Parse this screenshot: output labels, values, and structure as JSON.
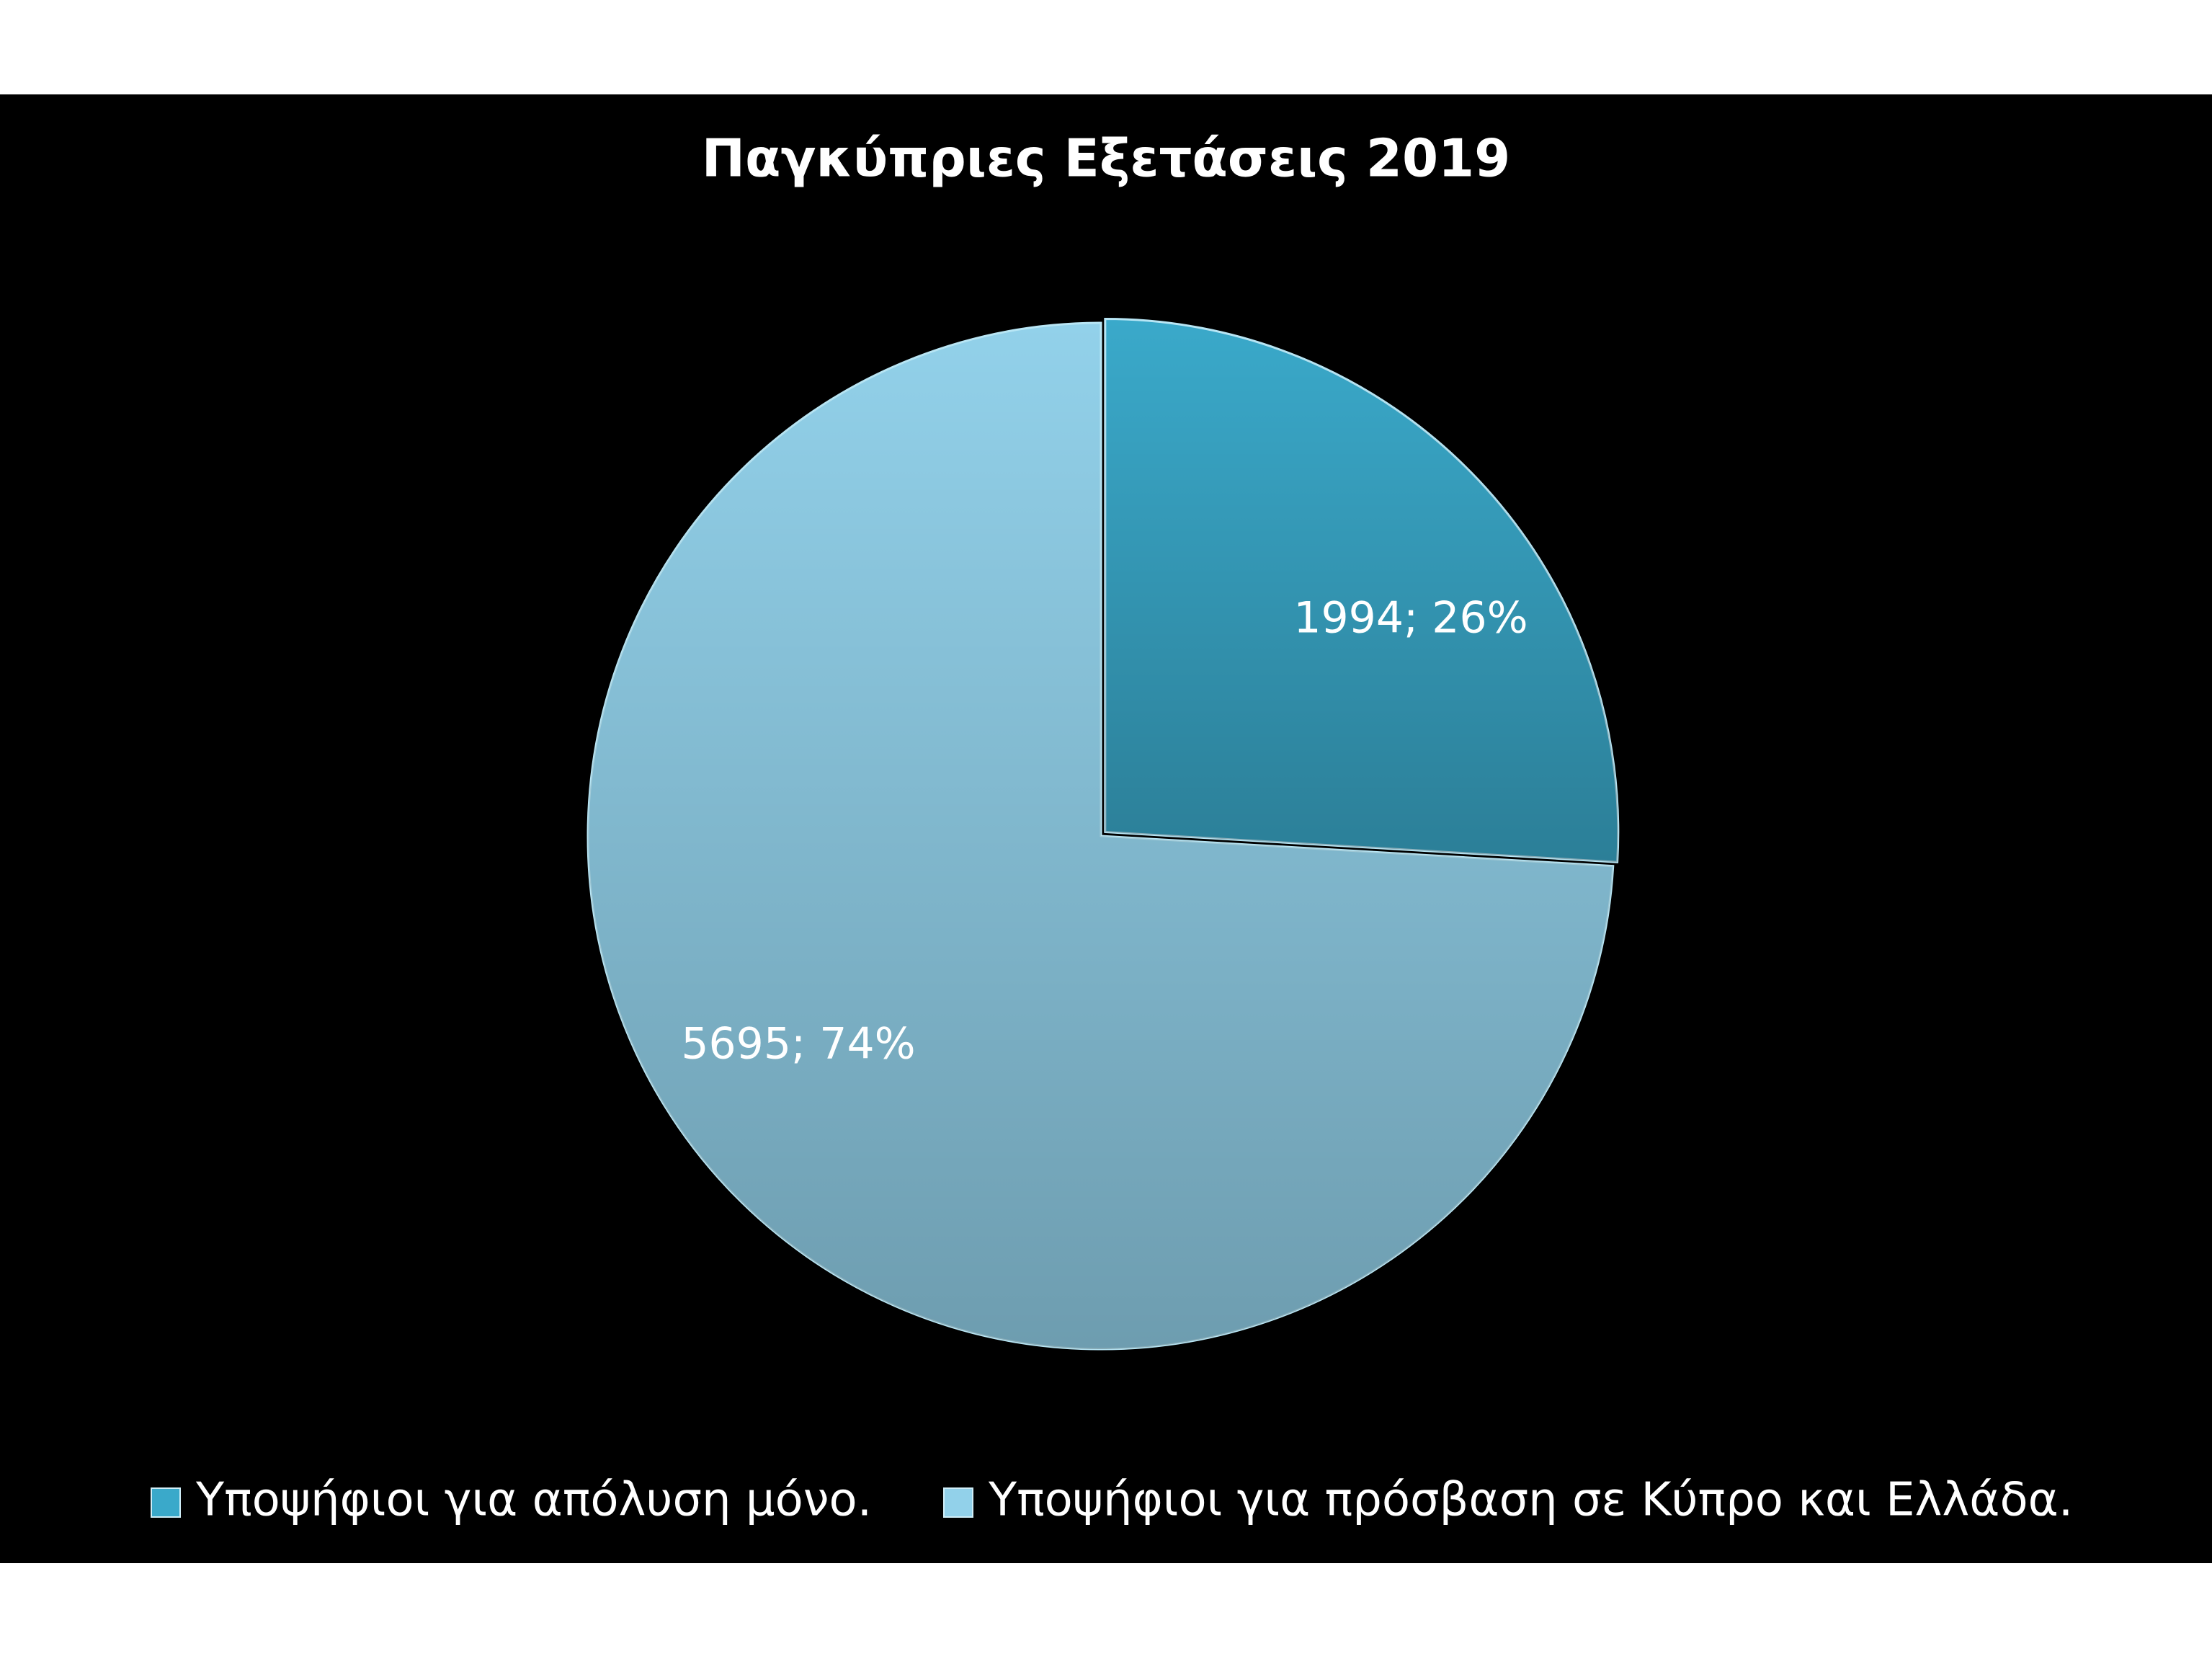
{
  "chart_data": {
    "type": "pie",
    "title": "Παγκύπριες Εξετάσεις 2019",
    "categories": [
      "Υποψήφιοι για απόλυση μόνο.",
      "Υποψήφιοι για πρόσβαση σε Κύπρο και Ελλάδα."
    ],
    "values": [
      1994,
      5695
    ],
    "value_labels": [
      "1994; 26%",
      "5695; 74%"
    ],
    "colors": [
      "#3aa9ca",
      "#92d1ea"
    ],
    "legend": "bottom"
  }
}
